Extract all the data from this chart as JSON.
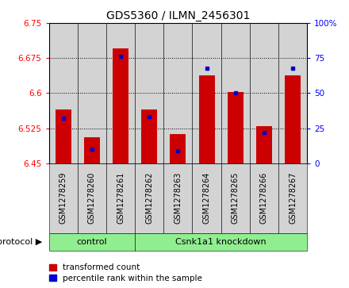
{
  "title": "GDS5360 / ILMN_2456301",
  "samples": [
    "GSM1278259",
    "GSM1278260",
    "GSM1278261",
    "GSM1278262",
    "GSM1278263",
    "GSM1278264",
    "GSM1278265",
    "GSM1278266",
    "GSM1278267"
  ],
  "red_values": [
    6.565,
    6.505,
    6.695,
    6.565,
    6.513,
    6.638,
    6.602,
    6.53,
    6.638
  ],
  "blue_values_pct": [
    32,
    10,
    76,
    33,
    9,
    68,
    50,
    22,
    68
  ],
  "ymin": 6.45,
  "ymax": 6.75,
  "yticks": [
    6.45,
    6.525,
    6.6,
    6.675,
    6.75
  ],
  "right_yticks": [
    0,
    25,
    50,
    75,
    100
  ],
  "bar_width": 0.55,
  "red_color": "#cc0000",
  "blue_color": "#0000cc",
  "col_bg_color": "#d3d3d3",
  "plot_bg_color": "#ffffff",
  "group_box_color": "#90ee90",
  "title_fontsize": 10,
  "tick_fontsize": 7.5,
  "label_fontsize": 7,
  "protocol_fontsize": 8,
  "group_fontsize": 8,
  "legend_fontsize": 7.5,
  "control_count": 3,
  "knockdown_count": 6,
  "knockdown_label": "Csnk1a1 knockdown",
  "control_label": "control",
  "protocol_label": "protocol"
}
